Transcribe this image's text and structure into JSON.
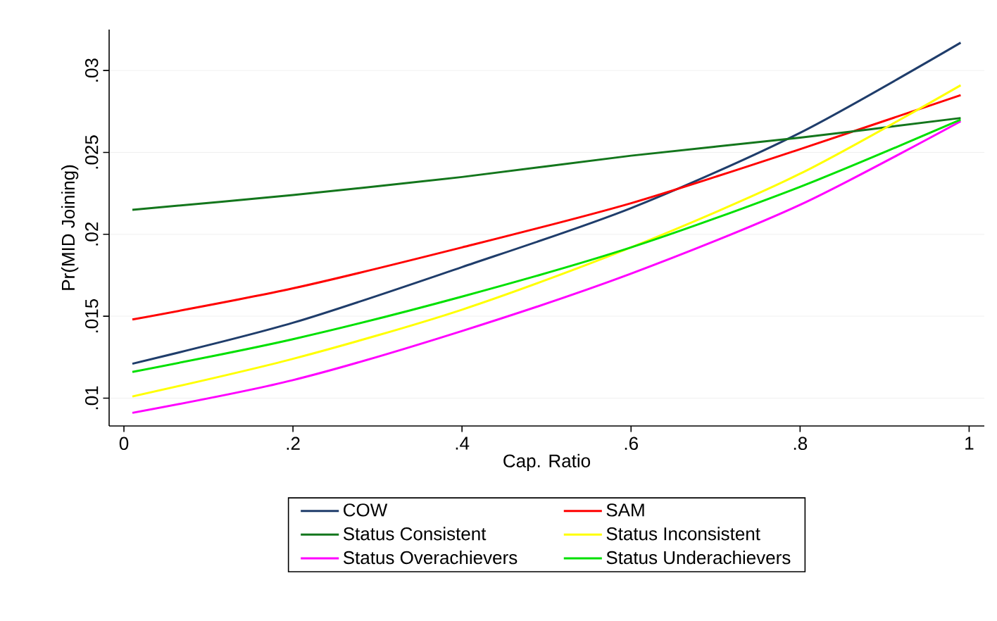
{
  "chart_data": {
    "type": "line",
    "xlabel": "Cap. Ratio",
    "ylabel": "Pr(MID Joining)",
    "x": [
      0.01,
      0.2,
      0.4,
      0.6,
      0.8,
      0.99
    ],
    "series": [
      {
        "name": "COW",
        "color": "#1f3d6b",
        "values": [
          0.0121,
          0.0146,
          0.018,
          0.0216,
          0.0262,
          0.0317
        ]
      },
      {
        "name": "SAM",
        "color": "#ff0000",
        "values": [
          0.0148,
          0.0167,
          0.0192,
          0.0219,
          0.0252,
          0.0285
        ]
      },
      {
        "name": "Status Consistent",
        "color": "#13761c",
        "values": [
          0.0215,
          0.0224,
          0.0235,
          0.0248,
          0.0259,
          0.0271
        ]
      },
      {
        "name": "Status Inconsistent",
        "color": "#ffff00",
        "values": [
          0.0101,
          0.0124,
          0.0154,
          0.0192,
          0.0237,
          0.0291
        ]
      },
      {
        "name": "Status Overachievers",
        "color": "#ff00ff",
        "values": [
          0.0091,
          0.0111,
          0.0141,
          0.0176,
          0.0218,
          0.0269
        ]
      },
      {
        "name": "Status Underachievers",
        "color": "#00e000",
        "values": [
          0.0116,
          0.0136,
          0.0162,
          0.0192,
          0.0229,
          0.027
        ]
      }
    ],
    "xlim": [
      -0.0175,
      1.018
    ],
    "ylim": [
      0.0083,
      0.0325
    ],
    "xticks": [
      0,
      {
        "value": 0.2,
        "label": ".2"
      },
      {
        "value": 0.4,
        "label": ".4"
      },
      {
        "value": 0.6,
        "label": ".6"
      },
      {
        "value": 0.8,
        "label": ".8"
      },
      1
    ],
    "yticks": [
      {
        "value": 0.01,
        "label": ".01"
      },
      {
        "value": 0.015,
        "label": ".015"
      },
      {
        "value": 0.02,
        "label": ".02"
      },
      {
        "value": 0.025,
        "label": ".025"
      },
      {
        "value": 0.03,
        "label": ".03"
      }
    ],
    "grid": "y",
    "legend": "bottom",
    "marker": "none",
    "line_style": "solid"
  }
}
